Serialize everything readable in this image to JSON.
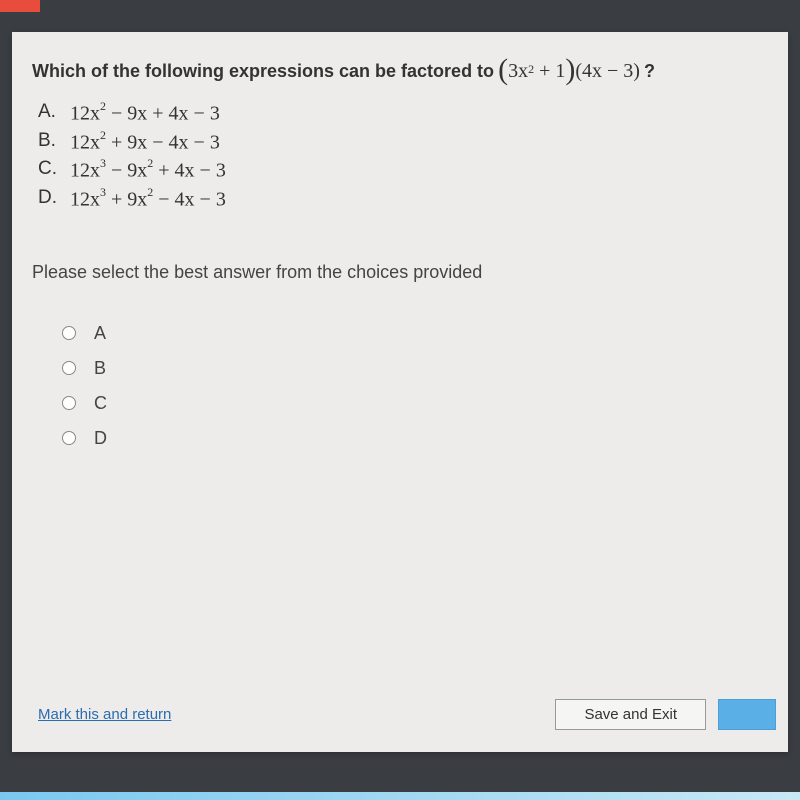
{
  "colors": {
    "page_bg": "#3a3d42",
    "panel_bg": "#edecea",
    "text": "#333333",
    "link": "#2a6db0",
    "button_bg": "#f5f5f3",
    "button_primary": "#5ab0e6",
    "accent_orange": "#e74c3c"
  },
  "question": {
    "prefix": "Which of the following expressions can be factored to",
    "target_expr_html": "(3x² + 1)(4x − 3)",
    "suffix": "?"
  },
  "choices": [
    {
      "label": "A.",
      "expr": "12x² − 9x + 4x − 3"
    },
    {
      "label": "B.",
      "expr": "12x² + 9x − 4x − 3"
    },
    {
      "label": "C.",
      "expr": "12x³ − 9x² + 4x − 3"
    },
    {
      "label": "D.",
      "expr": "12x³ + 9x² − 4x − 3"
    }
  ],
  "instruction": "Please select the best answer from the choices provided",
  "options": [
    "A",
    "B",
    "C",
    "D"
  ],
  "footer": {
    "mark_link": "Mark this and return",
    "save_exit": "Save and Exit"
  }
}
